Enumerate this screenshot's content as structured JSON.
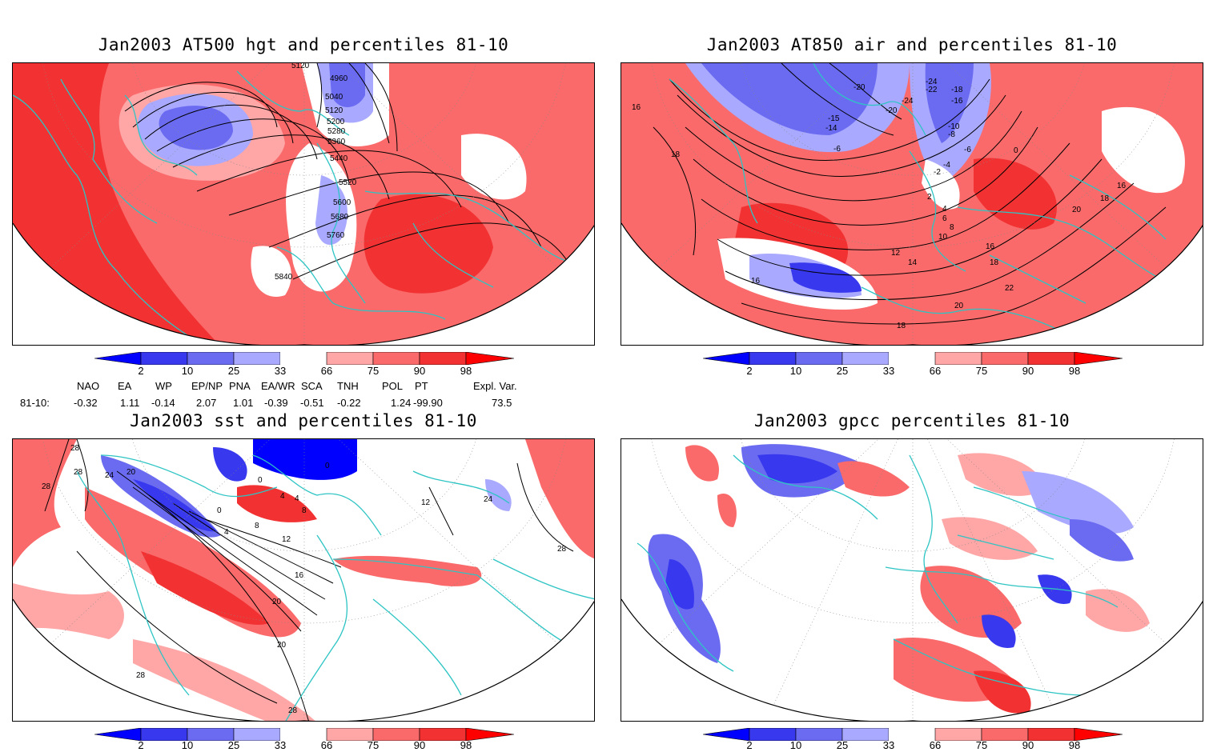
{
  "panels": [
    {
      "id": "p1",
      "title": "Jan2003 AT500 hgt and percentiles 81-10",
      "contour_labels": [
        "5120",
        "4960",
        "5040",
        "5120",
        "5200",
        "5280",
        "5360",
        "5440",
        "5520",
        "5600",
        "5680",
        "5760",
        "5840"
      ]
    },
    {
      "id": "p2",
      "title": "Jan2003 AT850 air and percentiles 81-10",
      "contour_labels": [
        "16",
        "18",
        "-20",
        "-24",
        "-22",
        "-18",
        "-16",
        "-20",
        "-24",
        "-15",
        "-14",
        "-10",
        "-6",
        "-8",
        "0",
        "-6",
        "-4",
        "-2",
        "2",
        "4",
        "6",
        "8",
        "10",
        "12",
        "14",
        "16",
        "18",
        "16",
        "18",
        "20",
        "22",
        "20",
        "18",
        "16"
      ]
    },
    {
      "id": "p3",
      "title": "Jan2003 sst and percentiles 81-10",
      "contour_labels": [
        "28",
        "28",
        "28",
        "24",
        "20",
        "0",
        "0",
        "4",
        "4",
        "8",
        "0",
        "4",
        "8",
        "12",
        "16",
        "20",
        "20",
        "28",
        "28",
        "12",
        "24",
        "28"
      ]
    },
    {
      "id": "p4",
      "title": "Jan2003 gpcc percentiles 81-10",
      "contour_labels": []
    }
  ],
  "colorbar": {
    "labels": [
      "2",
      "10",
      "25",
      "33",
      "66",
      "75",
      "90",
      "98"
    ],
    "colors": {
      "blue_extreme": "#0000ff",
      "blue_dark": "#3838ee",
      "blue_mid": "#6b6bf2",
      "blue_light": "#a9a9ff",
      "red_light": "#ffa6a6",
      "red_mid": "#fa6a6a",
      "red_dark": "#f23232",
      "red_extreme": "#ff0000"
    }
  },
  "indices": {
    "header": [
      "NAO",
      "EA",
      "WP",
      "EP/NP",
      "PNA",
      "EA/WR",
      "SCA",
      "TNH",
      "POL",
      "PT",
      "Expl. Var."
    ],
    "row_label": "81-10:",
    "values": [
      "-0.32",
      "1.11",
      "-0.14",
      "2.07",
      "1.01",
      "-0.39",
      "-0.51",
      "-0.22",
      "1.24",
      "-99.90",
      "73.5"
    ]
  },
  "map_colors": {
    "coast": "#2ec4c4",
    "contour": "#000000",
    "graticule": "#888888"
  }
}
